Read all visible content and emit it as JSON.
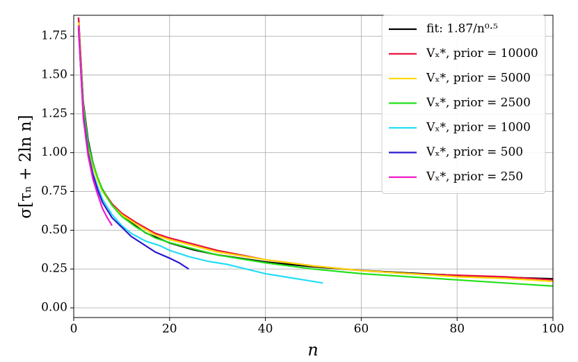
{
  "chart_data": {
    "type": "line",
    "x_label": "n",
    "y_label": "σ[τₙ + 2ln n]",
    "xlim": [
      0,
      100
    ],
    "ylim": [
      -0.0625,
      1.885
    ],
    "xticks": [
      0,
      20,
      40,
      60,
      80,
      100
    ],
    "yticks": [
      {
        "value": 0,
        "label": "0.00"
      },
      {
        "value": 0.25,
        "label": "0.25"
      },
      {
        "value": 0.5,
        "label": "0.50"
      },
      {
        "value": 0.75,
        "label": "0.75"
      },
      {
        "value": 1,
        "label": "1.00"
      },
      {
        "value": 1.25,
        "label": "1.25"
      },
      {
        "value": 1.5,
        "label": "1.50"
      },
      {
        "value": 1.75,
        "label": "1.75"
      }
    ],
    "grid": true,
    "legend": "upper right",
    "series": [
      {
        "name": "fit: 1.87/n⁰·⁵",
        "color": "#000000",
        "x": [
          1,
          2,
          3,
          4,
          5,
          6,
          8,
          10,
          15,
          20,
          25,
          30,
          40,
          50,
          60,
          70,
          80,
          90,
          100
        ],
        "values": [
          1.87,
          1.322,
          1.08,
          0.935,
          0.836,
          0.763,
          0.661,
          0.591,
          0.483,
          0.418,
          0.374,
          0.341,
          0.296,
          0.264,
          0.241,
          0.224,
          0.209,
          0.197,
          0.187
        ]
      },
      {
        "name": "Vₓ*, prior = 10000",
        "color": "#e8103c",
        "x": [
          1,
          2,
          3,
          4,
          5,
          6,
          8,
          10,
          13,
          17,
          20,
          25,
          30,
          40,
          50,
          60,
          70,
          80,
          90,
          100
        ],
        "values": [
          1.87,
          1.3,
          1.06,
          0.92,
          0.83,
          0.76,
          0.67,
          0.61,
          0.55,
          0.48,
          0.45,
          0.41,
          0.37,
          0.31,
          0.27,
          0.24,
          0.22,
          0.21,
          0.2,
          0.18
        ]
      },
      {
        "name": "Vₓ*, prior = 5000",
        "color": "#ffd700",
        "x": [
          1,
          2,
          3,
          4,
          5,
          6,
          8,
          10,
          13,
          17,
          20,
          25,
          30,
          40,
          50,
          60,
          70,
          80,
          90,
          100
        ],
        "values": [
          1.84,
          1.3,
          1.05,
          0.91,
          0.82,
          0.75,
          0.66,
          0.6,
          0.54,
          0.47,
          0.44,
          0.4,
          0.36,
          0.31,
          0.27,
          0.24,
          0.22,
          0.2,
          0.19,
          0.17
        ]
      },
      {
        "name": "Vₓ*, prior = 2500",
        "color": "#22e01a",
        "x": [
          1,
          2,
          3,
          4,
          5,
          6,
          8,
          10,
          13,
          17,
          20,
          25,
          30,
          40,
          50,
          60,
          70,
          80,
          90,
          100
        ],
        "values": [
          1.82,
          1.29,
          1.06,
          0.93,
          0.84,
          0.76,
          0.66,
          0.59,
          0.52,
          0.45,
          0.42,
          0.38,
          0.34,
          0.29,
          0.25,
          0.22,
          0.2,
          0.18,
          0.16,
          0.14
        ]
      },
      {
        "name": "Vₓ*, prior = 1000",
        "color": "#22ddf5",
        "x": [
          1,
          2,
          3,
          4,
          5,
          6,
          8,
          10,
          12,
          15,
          18,
          20,
          24,
          28,
          32,
          36,
          40,
          44,
          48,
          52
        ],
        "values": [
          1.8,
          1.25,
          1.0,
          0.87,
          0.78,
          0.7,
          0.6,
          0.53,
          0.48,
          0.43,
          0.4,
          0.37,
          0.33,
          0.3,
          0.28,
          0.25,
          0.22,
          0.2,
          0.18,
          0.16
        ]
      },
      {
        "name": "Vₓ*, prior = 500",
        "color": "#2a1ad0",
        "x": [
          1,
          2,
          3,
          4,
          5,
          6,
          8,
          10,
          12,
          15,
          17,
          20,
          22,
          24
        ],
        "values": [
          1.8,
          1.24,
          1.0,
          0.86,
          0.76,
          0.68,
          0.58,
          0.52,
          0.46,
          0.4,
          0.36,
          0.32,
          0.29,
          0.25
        ]
      },
      {
        "name": "Vₓ*, prior = 250",
        "color": "#f01aca",
        "x": [
          1,
          2,
          3,
          4,
          5,
          6,
          7,
          8
        ],
        "values": [
          1.82,
          1.22,
          0.98,
          0.83,
          0.73,
          0.64,
          0.58,
          0.53
        ]
      }
    ]
  }
}
